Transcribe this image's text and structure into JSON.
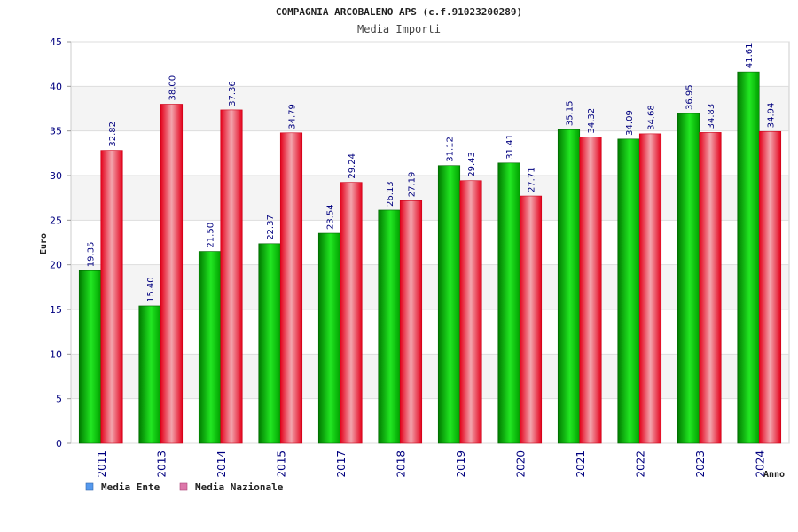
{
  "chart_data": {
    "type": "bar",
    "title": "COMPAGNIA ARCOBALENO APS (c.f.91023200289)",
    "subtitle": "Media Importi",
    "xlabel": "Anno",
    "ylabel": "Euro",
    "ylim": [
      0,
      45
    ],
    "yticks": [
      0,
      5,
      10,
      15,
      20,
      25,
      30,
      35,
      40,
      45
    ],
    "grid": true,
    "legend_position": "bottom-left",
    "categories": [
      "2011",
      "2013",
      "2014",
      "2015",
      "2017",
      "2018",
      "2019",
      "2020",
      "2021",
      "2022",
      "2023",
      "2024"
    ],
    "series": [
      {
        "name": "Media Ente",
        "color": "#00b000",
        "legend_color": "#5599ee",
        "values": [
          19.35,
          15.4,
          21.5,
          22.37,
          23.54,
          26.13,
          31.12,
          31.41,
          35.15,
          34.09,
          36.95,
          41.61
        ],
        "labels": [
          "19.35",
          "15.40",
          "21.50",
          "22.37",
          "23.54",
          "26.13",
          "31.12",
          "31.41",
          "35.15",
          "34.09",
          "36.95",
          "41.61"
        ]
      },
      {
        "name": "Media Nazionale",
        "color": "#ee1122",
        "legend_color": "#dd77aa",
        "values": [
          32.82,
          38.0,
          37.36,
          34.79,
          29.24,
          27.19,
          29.43,
          27.71,
          34.32,
          34.68,
          34.83,
          34.94
        ],
        "labels": [
          "32.82",
          "38.00",
          "37.36",
          "34.79",
          "29.24",
          "27.19",
          "29.43",
          "27.71",
          "34.32",
          "34.68",
          "34.83",
          "34.94"
        ]
      }
    ]
  }
}
